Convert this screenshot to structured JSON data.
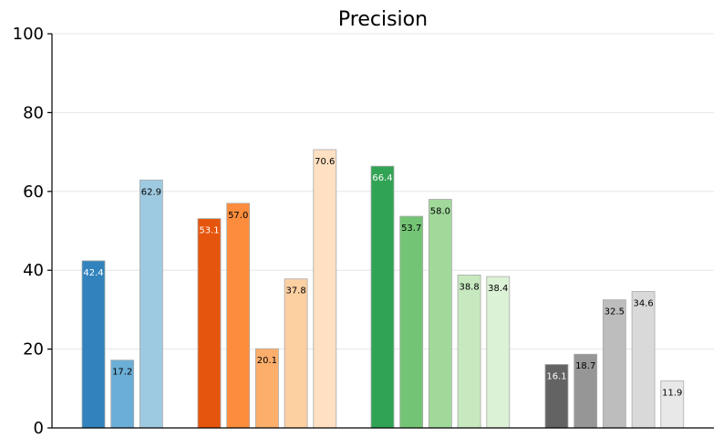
{
  "chart_data": {
    "type": "bar",
    "title": "Precision",
    "xlabel": "",
    "ylabel": "",
    "ylim": [
      0,
      100
    ],
    "yticks": [
      "0",
      "20",
      "40",
      "60",
      "80",
      "100"
    ],
    "grid": "horizontal",
    "groups": [
      {
        "bars": [
          {
            "value": 42.4,
            "label": "42.4",
            "color": "#3182bd",
            "label_color": "#ffffff"
          },
          {
            "value": 17.2,
            "label": "17.2",
            "color": "#6baed6",
            "label_color": "#000000"
          },
          {
            "value": 62.9,
            "label": "62.9",
            "color": "#9ecae1",
            "label_color": "#000000"
          }
        ]
      },
      {
        "bars": [
          {
            "value": 53.1,
            "label": "53.1",
            "color": "#e6550d",
            "label_color": "#ffffff"
          },
          {
            "value": 57.0,
            "label": "57.0",
            "color": "#fd8d3c",
            "label_color": "#000000"
          },
          {
            "value": 20.1,
            "label": "20.1",
            "color": "#fdae6b",
            "label_color": "#000000"
          },
          {
            "value": 37.8,
            "label": "37.8",
            "color": "#fdd0a2",
            "label_color": "#000000"
          },
          {
            "value": 70.6,
            "label": "70.6",
            "color": "#ffe0c2",
            "label_color": "#000000"
          }
        ]
      },
      {
        "bars": [
          {
            "value": 66.4,
            "label": "66.4",
            "color": "#31a354",
            "label_color": "#ffffff"
          },
          {
            "value": 53.7,
            "label": "53.7",
            "color": "#74c476",
            "label_color": "#000000"
          },
          {
            "value": 58.0,
            "label": "58.0",
            "color": "#a1d99b",
            "label_color": "#000000"
          },
          {
            "value": 38.8,
            "label": "38.8",
            "color": "#c7e9c0",
            "label_color": "#000000"
          },
          {
            "value": 38.4,
            "label": "38.4",
            "color": "#dcf2d6",
            "label_color": "#000000"
          }
        ]
      },
      {
        "bars": [
          {
            "value": 16.1,
            "label": "16.1",
            "color": "#636363",
            "label_color": "#ffffff"
          },
          {
            "value": 18.7,
            "label": "18.7",
            "color": "#969696",
            "label_color": "#000000"
          },
          {
            "value": 32.5,
            "label": "32.5",
            "color": "#bdbdbd",
            "label_color": "#000000"
          },
          {
            "value": 34.6,
            "label": "34.6",
            "color": "#d9d9d9",
            "label_color": "#000000"
          },
          {
            "value": 11.9,
            "label": "11.9",
            "color": "#e8e8e8",
            "label_color": "#000000"
          }
        ]
      }
    ]
  }
}
